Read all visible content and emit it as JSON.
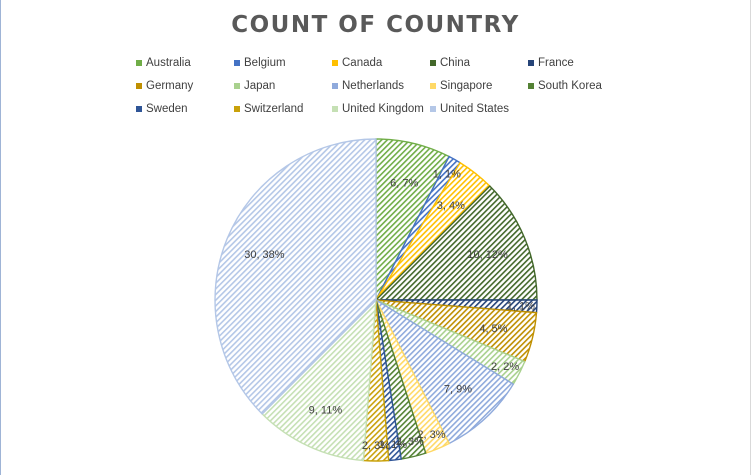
{
  "chart_data": {
    "type": "pie",
    "title": "COUNT OF COUNTRY",
    "legend_position": "top",
    "slices": [
      {
        "name": "Australia",
        "value": 6,
        "label": "6, 7%",
        "color": "#70ad47"
      },
      {
        "name": "Belgium",
        "value": 1,
        "label": "1, 1%",
        "color": "#4472c4"
      },
      {
        "name": "Canada",
        "value": 3,
        "label": "3, 4%",
        "color": "#ffc000"
      },
      {
        "name": "China",
        "value": 10,
        "label": "10, 12%",
        "color": "#43682b"
      },
      {
        "name": "France",
        "value": 1,
        "label": "1, 1%",
        "color": "#264478"
      },
      {
        "name": "Germany",
        "value": 4,
        "label": "4, 5%",
        "color": "#bf8f00"
      },
      {
        "name": "Japan",
        "value": 2,
        "label": "2, 2%",
        "color": "#a9d18e"
      },
      {
        "name": "Netherlands",
        "value": 7,
        "label": "7, 9%",
        "color": "#8faadc"
      },
      {
        "name": "Singapore",
        "value": 2,
        "label": "2, 3%",
        "color": "#ffd966"
      },
      {
        "name": "South Korea",
        "value": 2,
        "label": "2, 3%",
        "color": "#548235"
      },
      {
        "name": "Sweden",
        "value": 1,
        "label": "1, 1%",
        "color": "#2f5597"
      },
      {
        "name": "Switzerland",
        "value": 2,
        "label": "2, 3%",
        "color": "#c9a10a"
      },
      {
        "name": "United Kingdom",
        "value": 9,
        "label": "9, 11%",
        "color": "#c5e0b4"
      },
      {
        "name": "United States",
        "value": 30,
        "label": "30, 38%",
        "color": "#b4c7e7"
      }
    ]
  }
}
